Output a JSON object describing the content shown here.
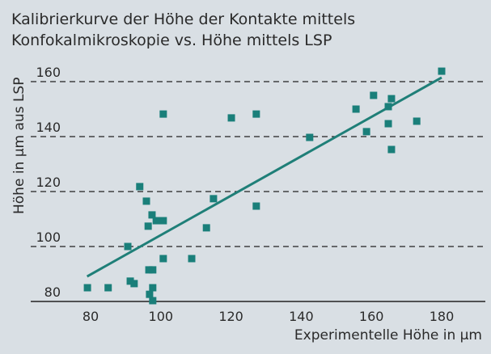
{
  "chart_data": {
    "type": "scatter",
    "title_lines": [
      "Kalibrierkurve der Höhe der Kontakte mittels",
      "Konfokalmikroskopie vs. Höhe mittels LSP"
    ],
    "xlabel": "Experimentelle Höhe in µm",
    "ylabel": "Höhe in µm aus LSP",
    "xlim": [
      70,
      190
    ],
    "ylim": [
      80,
      168
    ],
    "x_ticks": [
      "80",
      "100",
      "120",
      "140",
      "160",
      "180"
    ],
    "y_ticks": [
      "80",
      "100",
      "120",
      "140",
      "160"
    ],
    "grid": "horizontal dashed",
    "colors": {
      "marker": "#1a7f7a",
      "line": "#1f7f78",
      "background": "#d9dfe4"
    },
    "points": [
      [
        79.1,
        85
      ],
      [
        85,
        85
      ],
      [
        91.3,
        87.4
      ],
      [
        92.4,
        86.5
      ],
      [
        97.7,
        85
      ],
      [
        96.8,
        82.6
      ],
      [
        97.7,
        80.3
      ],
      [
        96.6,
        91.5
      ],
      [
        97.7,
        91.5
      ],
      [
        100.7,
        95.6
      ],
      [
        108.8,
        95.6
      ],
      [
        90.6,
        100
      ],
      [
        96.4,
        107.4
      ],
      [
        98.7,
        109.4
      ],
      [
        100.7,
        109.4
      ],
      [
        97.5,
        111.5
      ],
      [
        95.9,
        116.5
      ],
      [
        94,
        121.8
      ],
      [
        113,
        106.8
      ],
      [
        115,
        117.4
      ],
      [
        127.2,
        114.7
      ],
      [
        100.7,
        148.2
      ],
      [
        120.1,
        146.8
      ],
      [
        127.2,
        148.2
      ],
      [
        142.4,
        139.7
      ],
      [
        155.6,
        150
      ],
      [
        158.6,
        141.8
      ],
      [
        160.6,
        155
      ],
      [
        165.7,
        153.8
      ],
      [
        164.8,
        150.9
      ],
      [
        164.8,
        144.7
      ],
      [
        165.7,
        135.3
      ],
      [
        172.9,
        145.6
      ],
      [
        180,
        163.8
      ]
    ],
    "fit_line": {
      "x": [
        79,
        180
      ],
      "y": [
        89.1,
        161.5
      ]
    }
  }
}
